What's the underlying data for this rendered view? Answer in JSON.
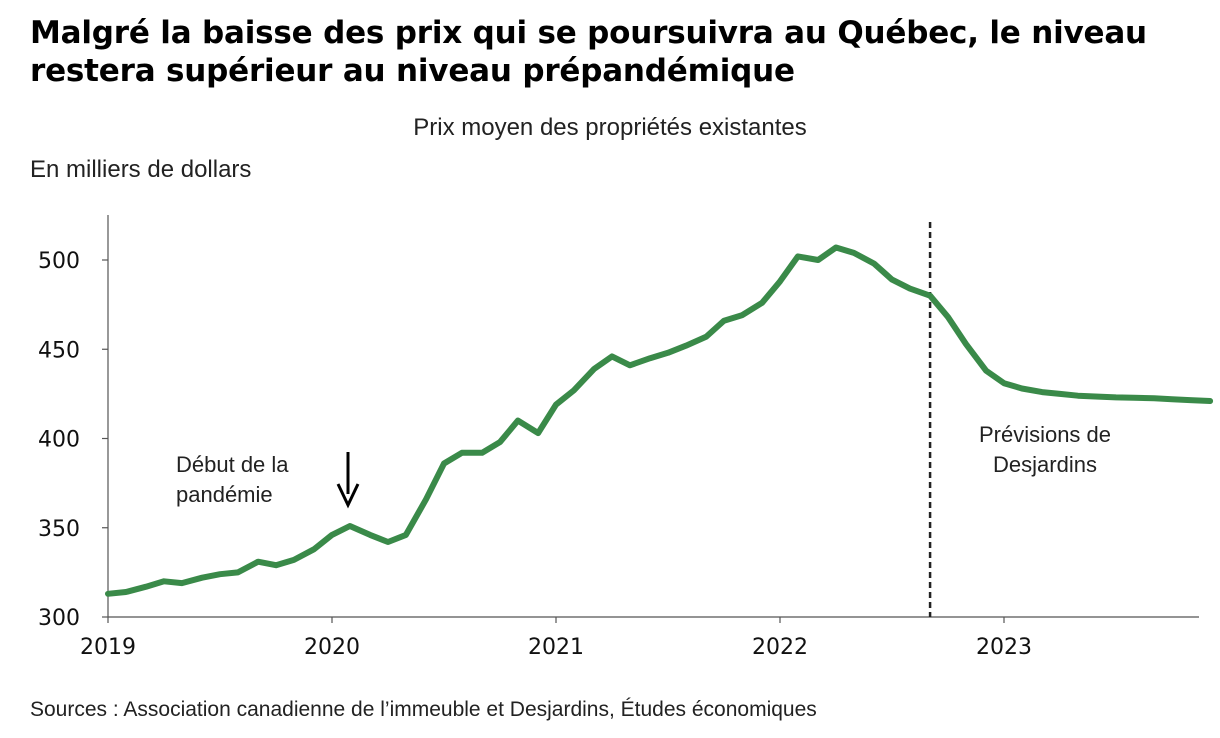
{
  "chart_data": {
    "type": "line",
    "title": "Malgré la baisse des prix qui se poursuivra au Québec, le niveau restera supérieur au niveau prépandémique",
    "subtitle": "Prix moyen des propriétés existantes",
    "ylabel": "En milliers de dollars",
    "source": "Sources : Association canadienne de l’immeuble et Desjardins, Études économiques",
    "ylim": [
      300,
      525
    ],
    "yticks": [
      300,
      350,
      400,
      450,
      500
    ],
    "xlim": [
      2019.0,
      2023.92
    ],
    "xticks": [
      "2019",
      "2020",
      "2021",
      "2022",
      "2023"
    ],
    "grid": false,
    "forecast_start": 2022.67,
    "annotations": {
      "pandemic": [
        "Début de la",
        "pandémie"
      ],
      "forecast": [
        "Prévisions de",
        "Desjardins"
      ]
    },
    "series": [
      {
        "color": "#3a8a49",
        "x": [
          2019.0,
          2019.08,
          2019.17,
          2019.25,
          2019.33,
          2019.42,
          2019.5,
          2019.58,
          2019.67,
          2019.75,
          2019.83,
          2019.92,
          2020.0,
          2020.08,
          2020.17,
          2020.25,
          2020.33,
          2020.42,
          2020.5,
          2020.58,
          2020.67,
          2020.75,
          2020.83,
          2020.92,
          2021.0,
          2021.08,
          2021.17,
          2021.25,
          2021.33,
          2021.42,
          2021.5,
          2021.58,
          2021.67,
          2021.75,
          2021.83,
          2021.92,
          2022.0,
          2022.08,
          2022.17,
          2022.25,
          2022.33,
          2022.42,
          2022.5,
          2022.58,
          2022.67,
          2022.75,
          2022.83,
          2022.92,
          2023.0,
          2023.08,
          2023.17,
          2023.25,
          2023.33,
          2023.42,
          2023.5,
          2023.58,
          2023.67,
          2023.75,
          2023.83,
          2023.92
        ],
        "y": [
          313,
          314,
          317,
          320,
          319,
          322,
          324,
          325,
          331,
          329,
          332,
          338,
          346,
          351,
          346,
          342,
          346,
          366,
          386,
          392,
          392,
          398,
          410,
          403,
          419,
          427,
          439,
          446,
          441,
          445,
          448,
          452,
          457,
          466,
          469,
          476,
          488,
          502,
          500,
          507,
          504,
          498,
          489,
          484,
          480,
          468,
          453,
          438,
          431,
          428,
          426,
          425,
          424,
          423.5,
          423,
          422.8,
          422.5,
          422,
          421.5,
          421
        ]
      }
    ]
  }
}
